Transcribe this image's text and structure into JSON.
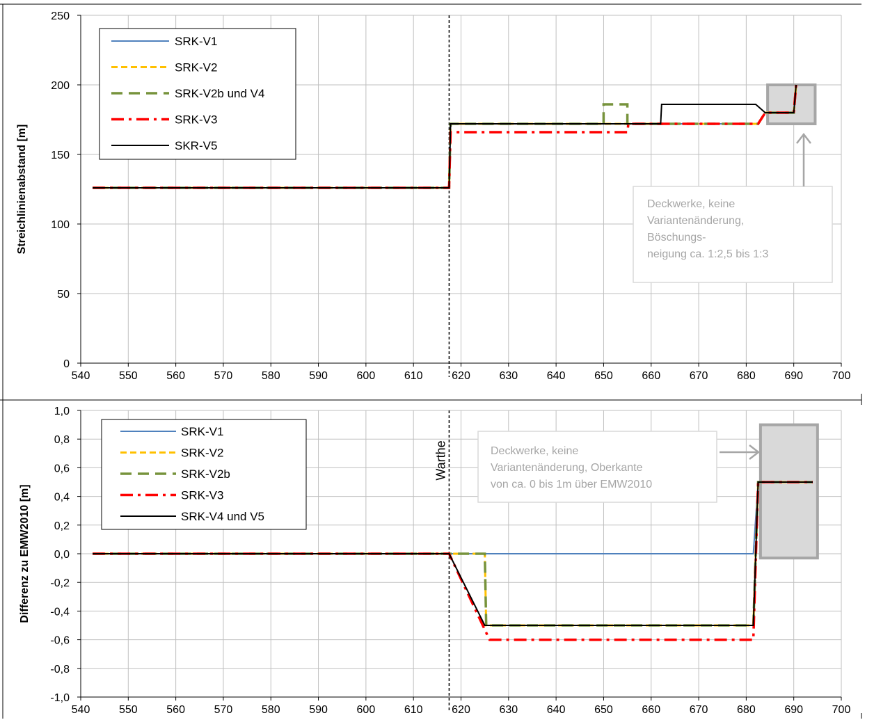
{
  "colors": {
    "SRK-V1": "#4f81bd",
    "SRK-V2": "#ffc000",
    "SRK-V2b": "#77933c",
    "SRK-V3": "#ff0000",
    "SRK-V5": "#000000",
    "grid": "#bfbfbf",
    "annotation_text": "#a6a6a6",
    "highlight_fill": "#d9d9d9",
    "highlight_border": "#a6a6a6"
  },
  "chart_data": [
    {
      "type": "line",
      "ylabel": "Streichlinienabstand [m]",
      "xlim": [
        540,
        700
      ],
      "ylim": [
        0,
        250
      ],
      "xticks": [
        "540",
        "550",
        "560",
        "570",
        "580",
        "590",
        "600",
        "610",
        "620",
        "630",
        "640",
        "650",
        "660",
        "670",
        "680",
        "690",
        "700"
      ],
      "yticks": [
        "0",
        "50",
        "100",
        "150",
        "200",
        "250"
      ],
      "grid": true,
      "legend": "top-left",
      "marker_line": {
        "x": 617.5
      },
      "annotation": {
        "lines": [
          "Deckwerke, keine",
          "Variantenänderung,",
          "Böschungs-",
          "neigung ca. 1:2,5 bis 1:3"
        ],
        "highlight": {
          "x": [
            684.5,
            694.5
          ],
          "y": [
            172,
            200
          ]
        }
      },
      "series": [
        {
          "name": "SRK-V1",
          "style": "solid",
          "x": [
            542.5,
            617.5,
            617.8,
            682.5,
            684,
            690,
            690.5
          ],
          "y": [
            126,
            126,
            172,
            172,
            180,
            180,
            200
          ]
        },
        {
          "name": "SRK-V2",
          "style": "dashed",
          "x": [
            542.5,
            617.5,
            617.8,
            682.5,
            684,
            690,
            690.5
          ],
          "y": [
            126,
            126,
            172,
            172,
            180,
            180,
            200
          ]
        },
        {
          "name": "SRK-V2b und V4",
          "style": "longdash",
          "x": [
            542.5,
            617.5,
            617.8,
            650,
            650,
            655,
            655,
            682.5,
            684,
            690,
            690.5
          ],
          "y": [
            126,
            126,
            172,
            172,
            186,
            186,
            172,
            172,
            180,
            180,
            200
          ]
        },
        {
          "name": "SRK-V3",
          "style": "dashdot",
          "x": [
            542.5,
            617.5,
            617.8,
            655,
            655.2,
            682.5,
            684,
            690,
            690.5
          ],
          "y": [
            126,
            126,
            166,
            166,
            172,
            172,
            180,
            180,
            200
          ]
        },
        {
          "name": "SKR-V5",
          "style": "solid-black",
          "x": [
            542.5,
            617.5,
            617.8,
            662,
            662.2,
            682,
            684,
            690,
            690.5
          ],
          "y": [
            126,
            126,
            172,
            172,
            186,
            186,
            180,
            180,
            200
          ]
        }
      ]
    },
    {
      "type": "line",
      "ylabel": "Differenz zu EMW2010 [m]",
      "xlim": [
        540,
        700
      ],
      "ylim": [
        -1.0,
        1.0
      ],
      "xticks": [
        "540",
        "550",
        "560",
        "570",
        "580",
        "590",
        "600",
        "610",
        "620",
        "630",
        "640",
        "650",
        "660",
        "670",
        "680",
        "690",
        "700"
      ],
      "yticks": [
        "-1,0",
        "-0,8",
        "-0,6",
        "-0,4",
        "-0,2",
        "0,0",
        "0,2",
        "0,4",
        "0,6",
        "0,8",
        "1,0"
      ],
      "grid": true,
      "legend": "top-left",
      "marker_line": {
        "x": 617.5,
        "label": "Warthe"
      },
      "annotation": {
        "lines": [
          "Deckwerke, keine",
          "Variantenänderung, Oberkante",
          "von ca. 0 bis 1m über EMW2010"
        ],
        "highlight": {
          "x": [
            683,
            695
          ],
          "y": [
            -0.03,
            0.9
          ]
        }
      },
      "series": [
        {
          "name": "SRK-V1",
          "style": "solid",
          "x": [
            542.5,
            681.5,
            682.5,
            694
          ],
          "y": [
            0,
            0,
            0.5,
            0.5
          ]
        },
        {
          "name": "SRK-V2",
          "style": "dashed",
          "x": [
            542.5,
            625,
            625.3,
            681.5,
            682.5,
            694
          ],
          "y": [
            0,
            0,
            -0.5,
            -0.5,
            0.5,
            0.5
          ]
        },
        {
          "name": "SRK-V2b",
          "style": "longdash",
          "x": [
            542.5,
            625,
            625.3,
            681.5,
            682.5,
            694
          ],
          "y": [
            0,
            0,
            -0.5,
            -0.5,
            0.5,
            0.5
          ]
        },
        {
          "name": "SRK-V3",
          "style": "dashdot",
          "x": [
            542.5,
            617.5,
            626,
            681.5,
            682.5,
            694
          ],
          "y": [
            0,
            0,
            -0.6,
            -0.6,
            0.5,
            0.5
          ]
        },
        {
          "name": "SRK-V4 und V5",
          "style": "solid-black",
          "x": [
            542.5,
            617.5,
            625,
            681.5,
            682.5,
            694
          ],
          "y": [
            0,
            0,
            -0.5,
            -0.5,
            0.5,
            0.5
          ]
        }
      ]
    }
  ]
}
